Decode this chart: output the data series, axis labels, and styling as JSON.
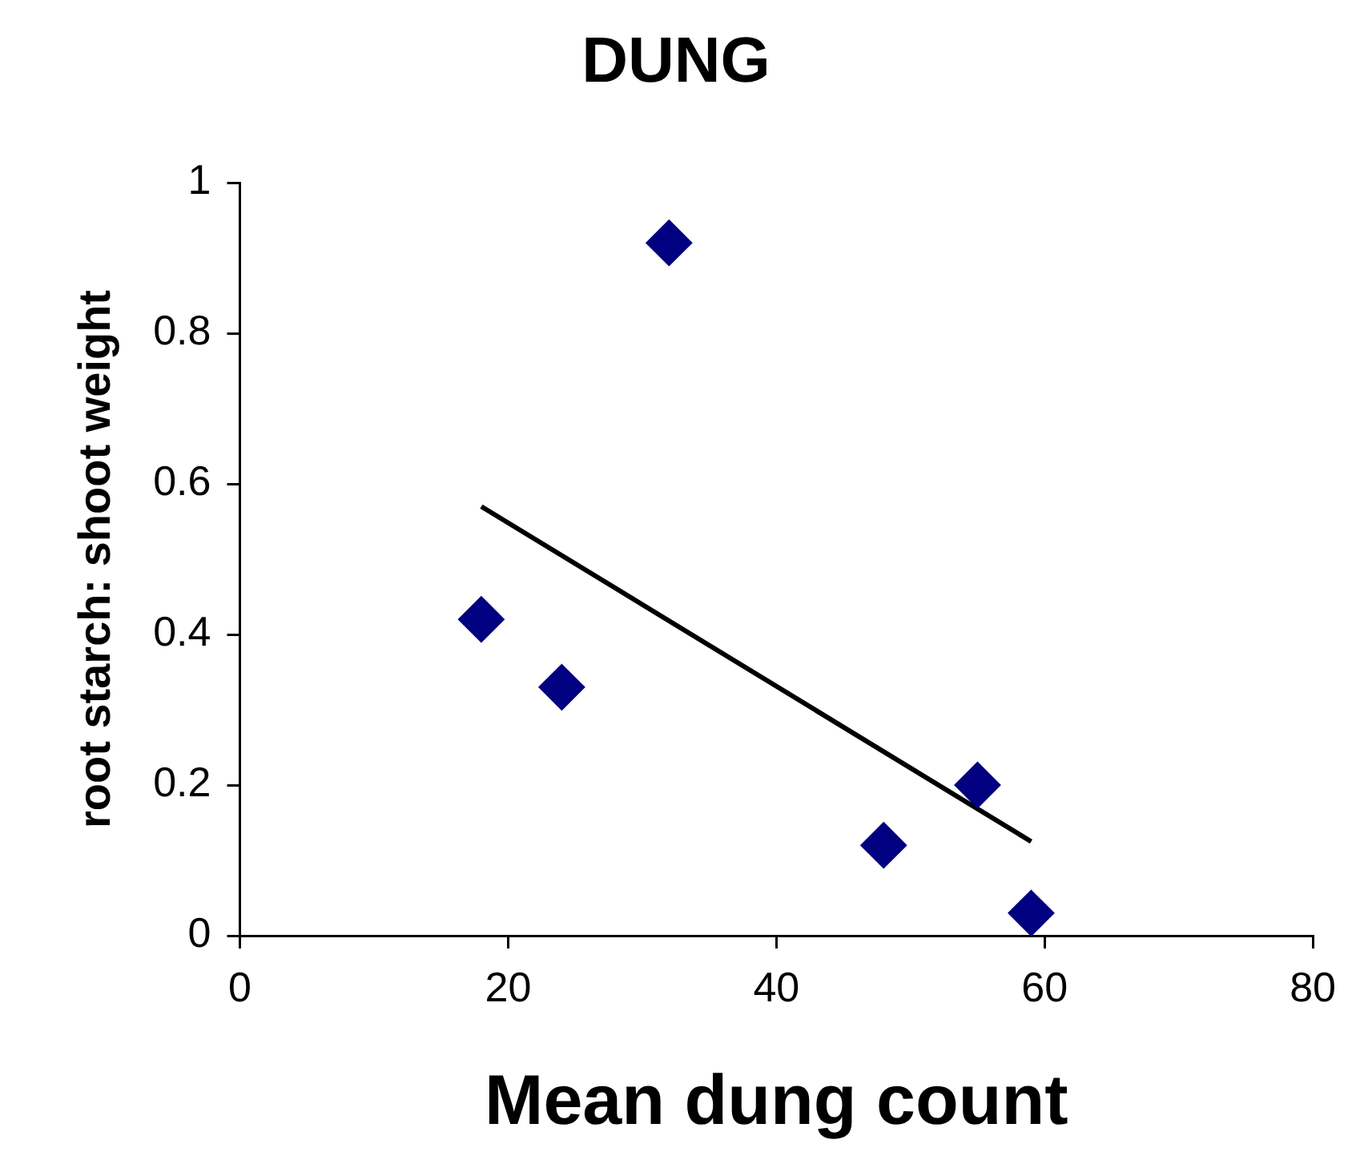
{
  "chart_data": {
    "type": "scatter",
    "title": "DUNG",
    "xlabel": "Mean dung count",
    "ylabel": "root starch: shoot weight",
    "xlim": [
      0,
      80
    ],
    "xticks": [
      0,
      20,
      40,
      60,
      80
    ],
    "ylim": [
      0,
      1
    ],
    "yticks": [
      0,
      0.2,
      0.4,
      0.6,
      0.8,
      1
    ],
    "grid": false,
    "legend": false,
    "marker": "diamond",
    "series": [
      {
        "type": "scatter",
        "color": "#000080",
        "x": [
          32,
          18,
          24,
          48,
          55,
          59
        ],
        "values": [
          0.92,
          0.42,
          0.33,
          0.12,
          0.2,
          0.03
        ]
      },
      {
        "type": "line",
        "color": "#000000",
        "x": [
          18,
          59
        ],
        "values": [
          0.57,
          0.125
        ],
        "line_style": "solid",
        "marker": "none"
      }
    ]
  }
}
